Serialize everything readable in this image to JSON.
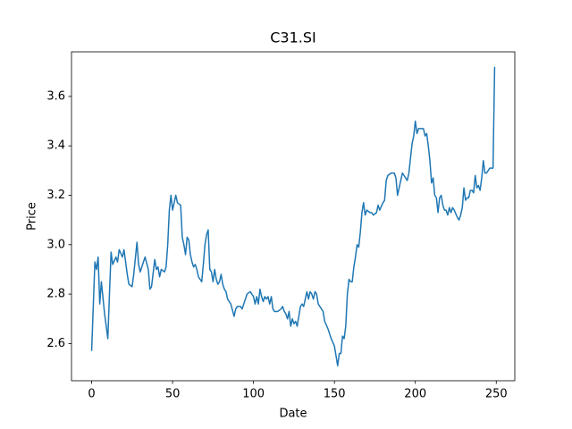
{
  "chart_data": {
    "type": "line",
    "title": "C31.SI",
    "x_label": "Date",
    "y_label": "Price",
    "xlim": [
      -12.45,
      261.45
    ],
    "ylim": [
      2.4495,
      3.7805
    ],
    "xticks": [
      0,
      50,
      100,
      150,
      200,
      250
    ],
    "yticks": [
      2.6,
      2.8,
      {
        "value": 3,
        "label": "3.0"
      },
      3.2,
      3.4,
      3.6
    ],
    "grid": false,
    "series": [
      {
        "color": "#1f77b4",
        "x": [
          0,
          2,
          3,
          4,
          5,
          6,
          8,
          10,
          11,
          12,
          13,
          15,
          16,
          17,
          19,
          20,
          22,
          23,
          25,
          26,
          28,
          29,
          30,
          32,
          33,
          35,
          36,
          37,
          39,
          40,
          41,
          42,
          43,
          45,
          46,
          47,
          48,
          49,
          50,
          51,
          52,
          53,
          55,
          56,
          57,
          58,
          59,
          60,
          61,
          62,
          63,
          64,
          65,
          66,
          67,
          68,
          69,
          70,
          71,
          72,
          73,
          74,
          75,
          76,
          77,
          78,
          79,
          80,
          81,
          82,
          83,
          84,
          85,
          86,
          88,
          89,
          90,
          92,
          93,
          95,
          96,
          98,
          99,
          100,
          101,
          102,
          103,
          104,
          105,
          106,
          107,
          108,
          109,
          110,
          111,
          112,
          113,
          115,
          117,
          118,
          119,
          120,
          121,
          122,
          123,
          124,
          125,
          126,
          127,
          128,
          129,
          130,
          131,
          132,
          133,
          134,
          135,
          136,
          137,
          138,
          139,
          140,
          142,
          143,
          144,
          146,
          148,
          150,
          152,
          153,
          154,
          155,
          156,
          157,
          158,
          159,
          160,
          161,
          162,
          163,
          164,
          165,
          166,
          167,
          168,
          169,
          170,
          172,
          173,
          174,
          176,
          177,
          178,
          180,
          181,
          182,
          183,
          185,
          187,
          188,
          189,
          190,
          191,
          192,
          193,
          195,
          196,
          197,
          198,
          199,
          200,
          201,
          202,
          203,
          205,
          206,
          207,
          208,
          209,
          210,
          211,
          212,
          213,
          214,
          215,
          216,
          217,
          218,
          219,
          220,
          221,
          222,
          223,
          224,
          226,
          227,
          228,
          229,
          230,
          231,
          232,
          233,
          234,
          235,
          236,
          237,
          238,
          239,
          240,
          241,
          242,
          243,
          244,
          245,
          246,
          247,
          248,
          249
        ],
        "values": [
          2.57,
          2.93,
          2.9,
          2.95,
          2.76,
          2.85,
          2.72,
          2.62,
          2.8,
          2.97,
          2.92,
          2.95,
          2.93,
          2.98,
          2.95,
          2.98,
          2.88,
          2.84,
          2.83,
          2.88,
          3.01,
          2.92,
          2.89,
          2.93,
          2.95,
          2.9,
          2.82,
          2.83,
          2.94,
          2.9,
          2.91,
          2.87,
          2.9,
          2.89,
          2.91,
          3.0,
          3.14,
          3.2,
          3.14,
          3.17,
          3.2,
          3.17,
          3.16,
          3.03,
          3.0,
          2.96,
          3.03,
          3.02,
          2.96,
          2.93,
          2.91,
          2.92,
          2.9,
          2.87,
          2.86,
          2.85,
          2.92,
          3.0,
          3.04,
          3.06,
          2.9,
          2.89,
          2.85,
          2.9,
          2.86,
          2.84,
          2.85,
          2.88,
          2.84,
          2.82,
          2.81,
          2.78,
          2.77,
          2.76,
          2.71,
          2.74,
          2.75,
          2.75,
          2.74,
          2.78,
          2.8,
          2.81,
          2.8,
          2.79,
          2.76,
          2.79,
          2.76,
          2.82,
          2.79,
          2.77,
          2.79,
          2.78,
          2.79,
          2.76,
          2.79,
          2.74,
          2.73,
          2.73,
          2.74,
          2.75,
          2.73,
          2.72,
          2.7,
          2.73,
          2.67,
          2.7,
          2.68,
          2.69,
          2.67,
          2.71,
          2.75,
          2.76,
          2.75,
          2.78,
          2.81,
          2.78,
          2.81,
          2.8,
          2.78,
          2.81,
          2.8,
          2.76,
          2.74,
          2.73,
          2.69,
          2.66,
          2.62,
          2.59,
          2.51,
          2.56,
          2.56,
          2.63,
          2.62,
          2.67,
          2.8,
          2.86,
          2.85,
          2.85,
          2.91,
          2.95,
          3.0,
          2.99,
          3.05,
          3.13,
          3.17,
          3.12,
          3.14,
          3.13,
          3.13,
          3.12,
          3.13,
          3.16,
          3.14,
          3.17,
          3.18,
          3.26,
          3.28,
          3.29,
          3.29,
          3.27,
          3.2,
          3.23,
          3.26,
          3.29,
          3.28,
          3.26,
          3.29,
          3.35,
          3.41,
          3.44,
          3.5,
          3.45,
          3.47,
          3.47,
          3.47,
          3.44,
          3.45,
          3.4,
          3.34,
          3.25,
          3.27,
          3.2,
          3.19,
          3.13,
          3.19,
          3.2,
          3.16,
          3.14,
          3.14,
          3.12,
          3.15,
          3.13,
          3.15,
          3.14,
          3.11,
          3.1,
          3.12,
          3.15,
          3.23,
          3.18,
          3.19,
          3.19,
          3.22,
          3.22,
          3.21,
          3.28,
          3.23,
          3.24,
          3.22,
          3.27,
          3.34,
          3.29,
          3.29,
          3.3,
          3.31,
          3.31,
          3.31,
          3.72
        ]
      }
    ]
  }
}
